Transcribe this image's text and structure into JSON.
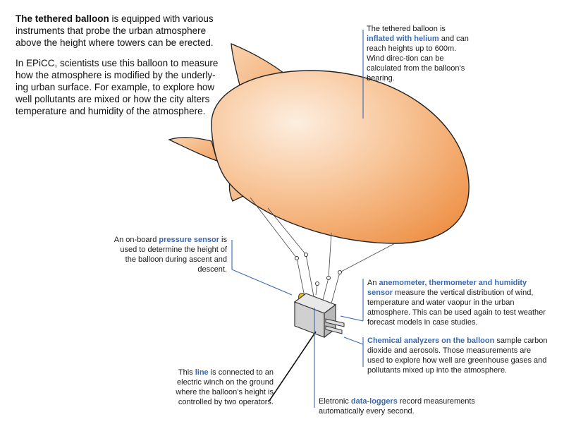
{
  "intro": {
    "p1_bold": "The tethered balloon",
    "p1_rest": " is equipped with various instruments that probe the urban atmosphere above the height where towers can be erected.",
    "p2": "In EPiCC, scientists use this balloon to measure how the atmosphere is modified by the underly-ing urban surface. For example, to explore how well pollutants are mixed or how the city alters temperature and humidity of the atmosphere."
  },
  "helium": {
    "pre": "The tethered balloon is ",
    "hl": "inflated with helium",
    "post": " and can reach heights up to 600m. Wind direc-tion can be calculated from the balloon’s bearing."
  },
  "pressure": {
    "pre": "An on-board ",
    "hl": "pressure sensor",
    "post": " is used to determine the height of the balloon during ascent and descent."
  },
  "anemometer": {
    "pre": "An ",
    "hl": "anemometer, thermometer and humidity sensor",
    "post": " measure the vertical distribution of wind, temperature and water vaopur in the urban atmosphere. This can be used again to test weather forecast models in case studies."
  },
  "chemical": {
    "hl": "Chemical analyzers on the balloon",
    "post": " sample carbon dioxide and aerosols. Those measurements are used to explore how well are greenhouse gases and pollutants mixed up into the atmosphere."
  },
  "line": {
    "pre": "This ",
    "hl": "line",
    "post": " is connected to an electric winch on the ground where the balloon’s height is controlled by two operators."
  },
  "loggers": {
    "pre": "Eletronic ",
    "hl": "data-loggers",
    "post": " record measurements automatically every second."
  },
  "colors": {
    "accent": "#3a68b2",
    "balloon_light": "#fde8d6",
    "balloon_dark": "#f0a060"
  }
}
